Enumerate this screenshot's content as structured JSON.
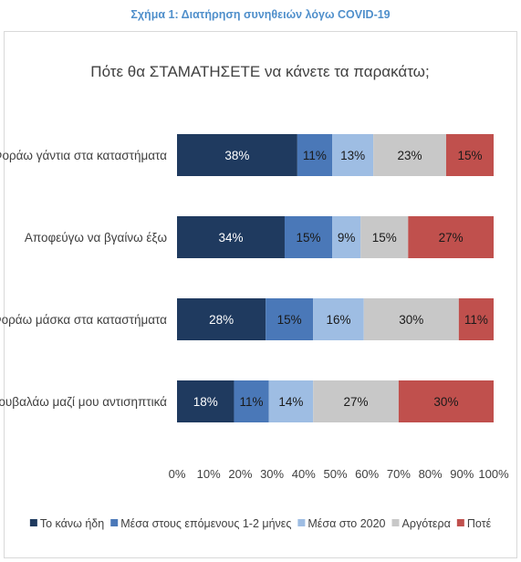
{
  "figure_title": "Σχήμα 1: Διατήρηση συνηθειών λόγω COVID-19",
  "chart_data": {
    "type": "bar",
    "orientation": "horizontal",
    "stacked": true,
    "percent_stacked": true,
    "title": "Πότε θα ΣΤΑΜΑΤΗΣΕΤΕ να κάνετε τα παρακάτω;",
    "xlabel": "",
    "ylabel": "",
    "xlim": [
      0,
      100
    ],
    "x_ticks": [
      "0%",
      "10%",
      "20%",
      "30%",
      "40%",
      "50%",
      "60%",
      "70%",
      "80%",
      "90%",
      "100%"
    ],
    "grid": false,
    "legend_position": "bottom",
    "categories": [
      "Φοράω γάντια στα καταστήματα",
      "Αποφεύγω να βγαίνω έξω",
      "Φοράω μάσκα στα καταστήματα",
      "Κουβαλάω μαζί μου αντισηπτικά"
    ],
    "series": [
      {
        "name": "Το κάνω ήδη",
        "color": "#1f3a5f",
        "text_color": "#ffffff",
        "values": [
          38,
          34,
          28,
          18
        ]
      },
      {
        "name": "Μέσα στους επόμενους 1-2 μήνες",
        "color": "#4a78b8",
        "text_color": "#1a1a1a",
        "values": [
          11,
          15,
          15,
          11
        ]
      },
      {
        "name": "Μέσα στο 2020",
        "color": "#9ebde3",
        "text_color": "#1a1a1a",
        "values": [
          13,
          9,
          16,
          14
        ]
      },
      {
        "name": "Αργότερα",
        "color": "#c8c8c8",
        "text_color": "#1a1a1a",
        "values": [
          23,
          15,
          30,
          27
        ]
      },
      {
        "name": "Ποτέ",
        "color": "#c0504d",
        "text_color": "#1a1a1a",
        "values": [
          15,
          27,
          11,
          30
        ]
      }
    ],
    "value_suffix": "%"
  }
}
